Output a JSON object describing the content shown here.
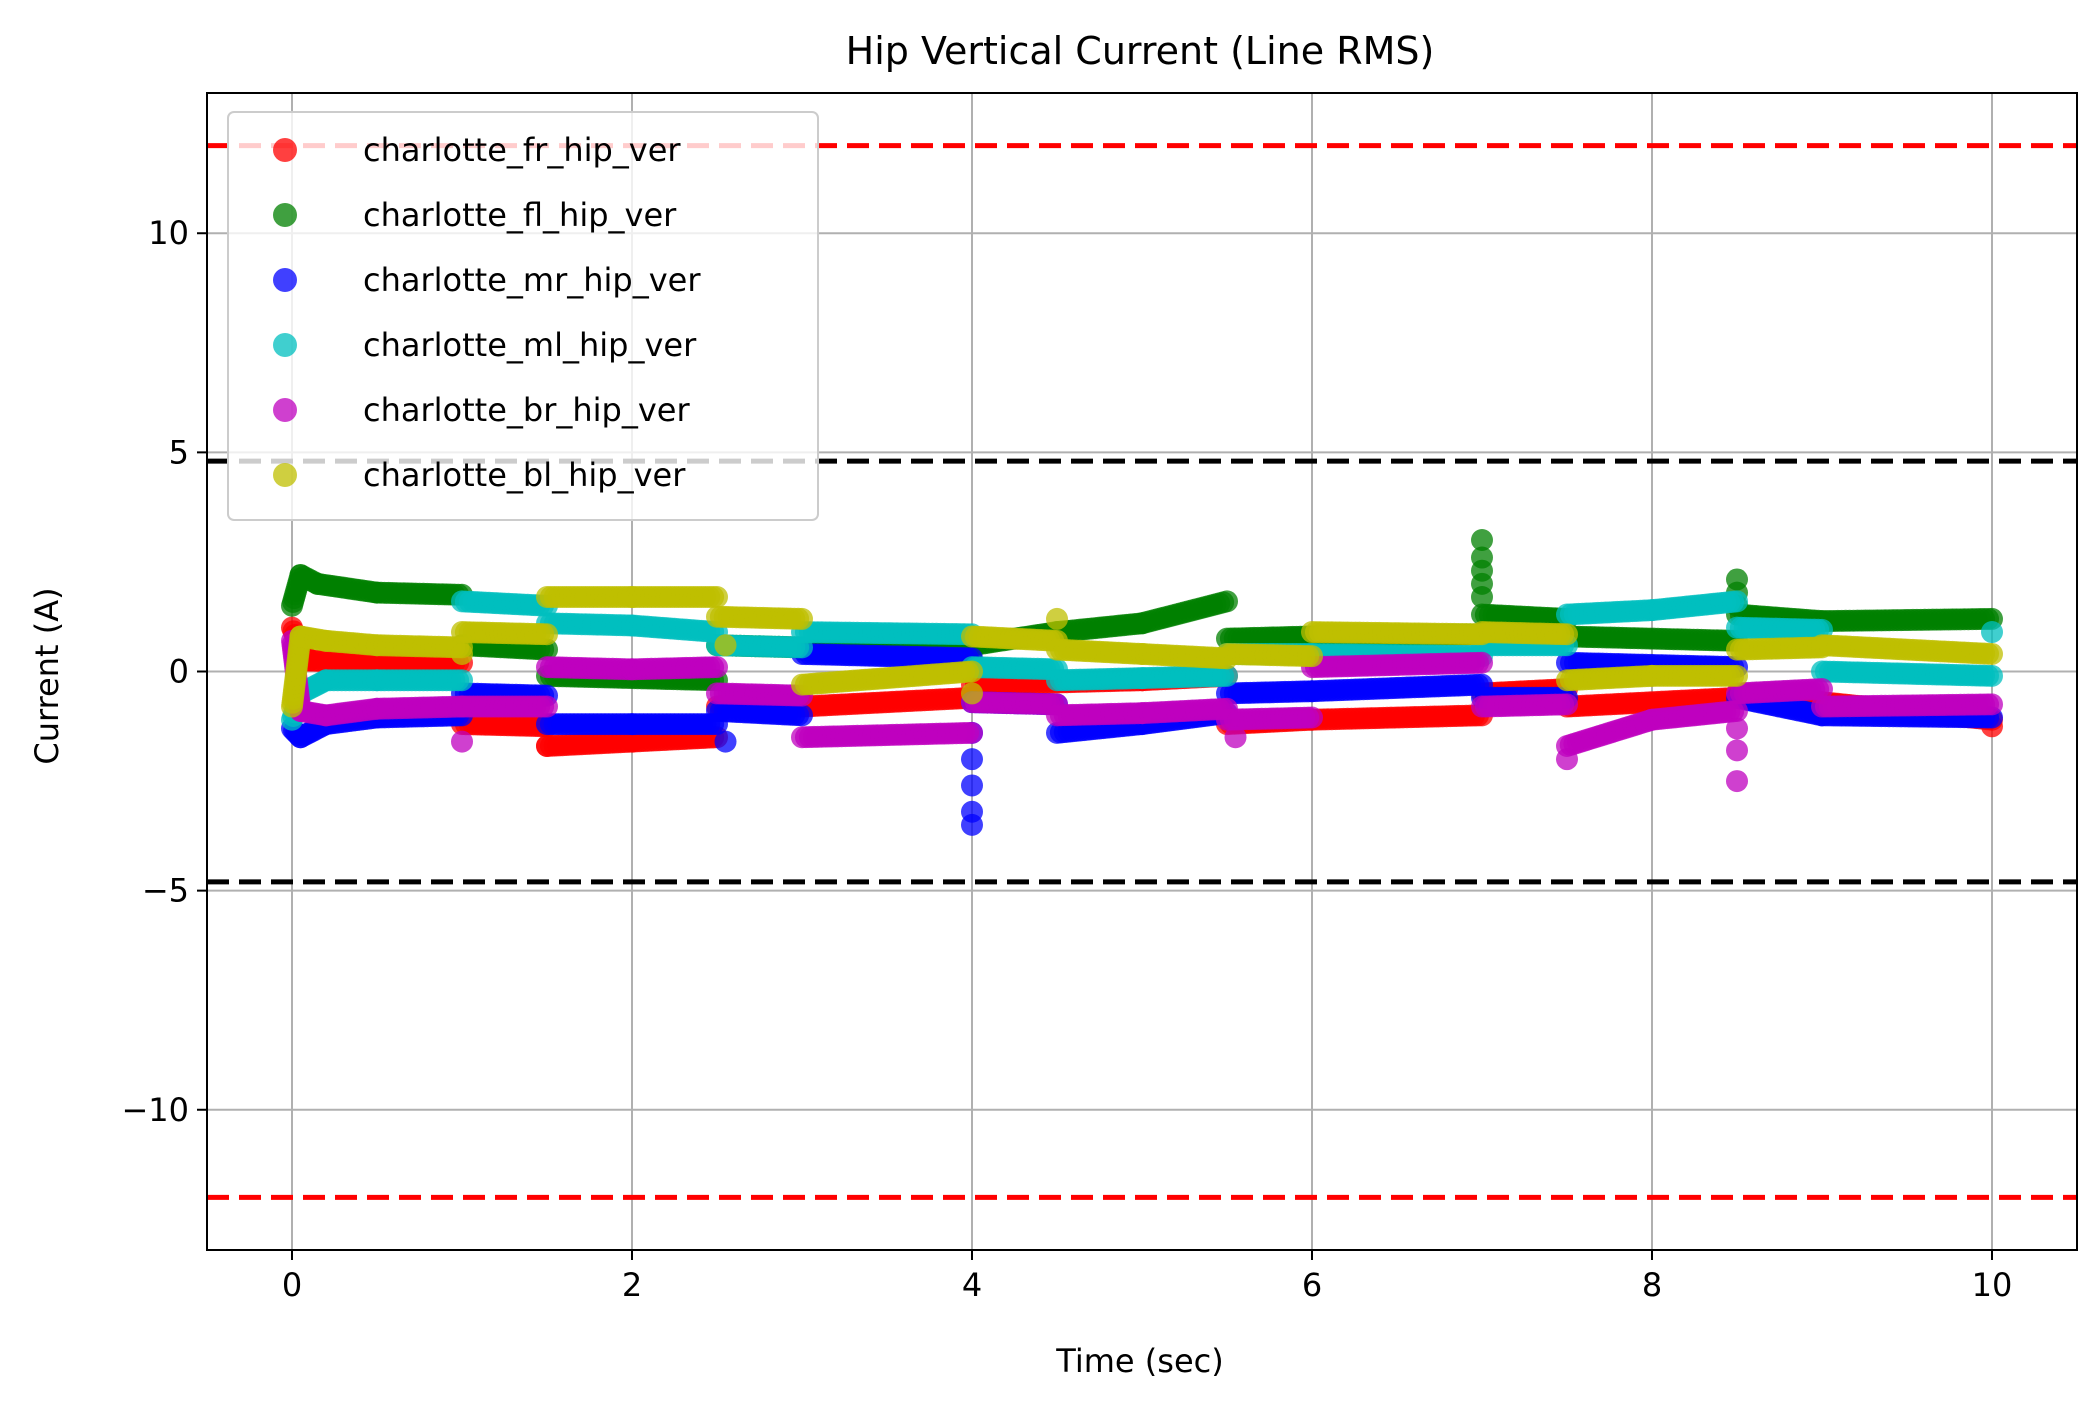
{
  "chart_data": {
    "type": "scatter",
    "title": "Hip Vertical Current (Line RMS)",
    "xlabel": "Time (sec)",
    "ylabel": "Current (A)",
    "xlim": [
      -0.5,
      10.5
    ],
    "ylim": [
      -13.2,
      13.2
    ],
    "x_ticks": [
      0,
      2,
      4,
      6,
      8,
      10
    ],
    "y_ticks": [
      -10,
      -5,
      0,
      5,
      10
    ],
    "x_tick_labels": [
      "0",
      "2",
      "4",
      "6",
      "8",
      "10"
    ],
    "y_tick_labels": [
      "−10",
      "−5",
      "0",
      "5",
      "10"
    ],
    "grid": true,
    "legend_position": "upper-left",
    "reference_lines": [
      {
        "y": 12,
        "color": "#ff0000",
        "style": "dashed"
      },
      {
        "y": -12,
        "color": "#ff0000",
        "style": "dashed"
      },
      {
        "y": 4.8,
        "color": "#000000",
        "style": "dashed"
      },
      {
        "y": -4.8,
        "color": "#000000",
        "style": "dashed"
      }
    ],
    "series": [
      {
        "name": "charlotte_fr_hip_ver",
        "color": "#ff0000",
        "segments": [
          [
            [
              0.0,
              1.0
            ],
            [
              0.05,
              0.5
            ],
            [
              0.1,
              0.25
            ],
            [
              0.5,
              0.2
            ],
            [
              1.0,
              0.2
            ]
          ],
          [
            [
              1.0,
              -1.2
            ],
            [
              1.5,
              -1.25
            ]
          ],
          [
            [
              1.5,
              -1.7
            ],
            [
              2.0,
              -1.6
            ],
            [
              2.5,
              -1.5
            ]
          ],
          [
            [
              2.5,
              -0.8
            ],
            [
              3.0,
              -0.7
            ]
          ],
          [
            [
              3.0,
              -0.8
            ],
            [
              4.0,
              -0.6
            ]
          ],
          [
            [
              4.0,
              -0.3
            ],
            [
              5.0,
              -0.2
            ],
            [
              5.5,
              -0.1
            ]
          ],
          [
            [
              5.5,
              -1.2
            ],
            [
              6.0,
              -1.1
            ],
            [
              7.0,
              -1.0
            ]
          ],
          [
            [
              7.0,
              -0.5
            ],
            [
              7.5,
              -0.4
            ]
          ],
          [
            [
              7.5,
              -0.8
            ],
            [
              8.5,
              -0.6
            ]
          ],
          [
            [
              8.5,
              -0.5
            ],
            [
              9.0,
              -0.7
            ],
            [
              10.0,
              -1.1
            ]
          ]
        ],
        "spikes": [
          [
            1.5,
            -1.7
          ],
          [
            10.0,
            -1.25
          ]
        ]
      },
      {
        "name": "charlotte_fl_hip_ver",
        "color": "#008000",
        "segments": [
          [
            [
              0.0,
              1.5
            ],
            [
              0.05,
              2.2
            ],
            [
              0.15,
              2.0
            ],
            [
              0.5,
              1.8
            ],
            [
              1.0,
              1.75
            ]
          ],
          [
            [
              1.0,
              0.6
            ],
            [
              1.5,
              0.5
            ]
          ],
          [
            [
              1.5,
              -0.1
            ],
            [
              2.5,
              -0.2
            ]
          ],
          [
            [
              2.5,
              0.6
            ],
            [
              3.0,
              0.55
            ]
          ],
          [
            [
              3.0,
              0.5
            ],
            [
              4.0,
              0.45
            ]
          ],
          [
            [
              4.0,
              0.6
            ],
            [
              4.5,
              0.9
            ],
            [
              5.0,
              1.1
            ],
            [
              5.5,
              1.6
            ]
          ],
          [
            [
              5.5,
              0.75
            ],
            [
              6.0,
              0.8
            ],
            [
              7.0,
              0.85
            ]
          ],
          [
            [
              7.0,
              1.3
            ],
            [
              7.5,
              1.2
            ]
          ],
          [
            [
              7.5,
              0.8
            ],
            [
              8.5,
              0.7
            ]
          ],
          [
            [
              8.5,
              1.3
            ],
            [
              9.0,
              1.15
            ],
            [
              10.0,
              1.2
            ]
          ]
        ],
        "spikes": [
          [
            7.0,
            3.0
          ],
          [
            7.0,
            2.6
          ],
          [
            7.0,
            2.3
          ],
          [
            7.0,
            2.0
          ],
          [
            7.0,
            1.7
          ],
          [
            8.5,
            2.1
          ],
          [
            8.5,
            1.8
          ],
          [
            8.5,
            1.5
          ]
        ]
      },
      {
        "name": "charlotte_mr_hip_ver",
        "color": "#0000ff",
        "segments": [
          [
            [
              0.0,
              -1.3
            ],
            [
              0.05,
              -1.5
            ],
            [
              0.2,
              -1.2
            ],
            [
              0.5,
              -1.05
            ],
            [
              1.0,
              -1.0
            ]
          ],
          [
            [
              1.0,
              -0.5
            ],
            [
              1.5,
              -0.55
            ]
          ],
          [
            [
              1.5,
              -1.2
            ],
            [
              2.0,
              -1.2
            ],
            [
              2.5,
              -1.2
            ]
          ],
          [
            [
              2.5,
              -0.9
            ],
            [
              3.0,
              -1.0
            ]
          ],
          [
            [
              3.0,
              0.4
            ],
            [
              4.0,
              0.3
            ]
          ],
          [
            [
              4.0,
              -0.7
            ],
            [
              4.5,
              -0.75
            ]
          ],
          [
            [
              4.5,
              -1.4
            ],
            [
              5.0,
              -1.2
            ],
            [
              5.5,
              -0.95
            ]
          ],
          [
            [
              5.5,
              -0.5
            ],
            [
              6.0,
              -0.45
            ],
            [
              7.0,
              -0.3
            ]
          ],
          [
            [
              7.0,
              -0.6
            ],
            [
              7.5,
              -0.6
            ]
          ],
          [
            [
              7.5,
              0.2
            ],
            [
              8.5,
              0.1
            ]
          ],
          [
            [
              8.5,
              -0.6
            ],
            [
              9.0,
              -1.0
            ],
            [
              10.0,
              -1.05
            ]
          ]
        ],
        "spikes": [
          [
            4.0,
            -3.5
          ],
          [
            4.0,
            -3.2
          ],
          [
            4.0,
            -2.6
          ],
          [
            4.0,
            -2.0
          ],
          [
            4.0,
            -1.4
          ],
          [
            2.55,
            -1.6
          ]
        ]
      },
      {
        "name": "charlotte_ml_hip_ver",
        "color": "#00bfbf",
        "segments": [
          [
            [
              0.0,
              -1.1
            ],
            [
              0.05,
              -0.5
            ],
            [
              0.2,
              -0.2
            ],
            [
              0.5,
              -0.2
            ],
            [
              1.0,
              -0.2
            ]
          ],
          [
            [
              1.0,
              1.6
            ],
            [
              1.5,
              1.5
            ]
          ],
          [
            [
              1.5,
              1.1
            ],
            [
              2.0,
              1.05
            ],
            [
              2.5,
              0.9
            ]
          ],
          [
            [
              2.5,
              0.6
            ],
            [
              3.0,
              0.55
            ]
          ],
          [
            [
              3.0,
              0.9
            ],
            [
              4.0,
              0.85
            ]
          ],
          [
            [
              4.0,
              0.1
            ],
            [
              4.5,
              0.05
            ]
          ],
          [
            [
              4.5,
              -0.2
            ],
            [
              5.0,
              -0.15
            ],
            [
              5.5,
              -0.1
            ]
          ],
          [
            [
              5.5,
              0.4
            ],
            [
              6.0,
              0.4
            ],
            [
              7.0,
              0.35
            ]
          ],
          [
            [
              7.0,
              0.6
            ],
            [
              7.5,
              0.6
            ]
          ],
          [
            [
              7.5,
              1.3
            ],
            [
              8.0,
              1.4
            ],
            [
              8.5,
              1.6
            ]
          ],
          [
            [
              8.5,
              1.0
            ],
            [
              9.0,
              0.95
            ]
          ],
          [
            [
              9.0,
              0.0
            ],
            [
              10.0,
              -0.1
            ]
          ]
        ],
        "spikes": [
          [
            10.0,
            0.9
          ]
        ]
      },
      {
        "name": "charlotte_br_hip_ver",
        "color": "#bf00bf",
        "segments": [
          [
            [
              0.0,
              0.7
            ],
            [
              0.05,
              -0.9
            ],
            [
              0.2,
              -1.0
            ],
            [
              0.5,
              -0.85
            ],
            [
              1.0,
              -0.8
            ]
          ],
          [
            [
              1.0,
              -0.8
            ],
            [
              1.5,
              -0.8
            ]
          ],
          [
            [
              1.5,
              0.1
            ],
            [
              2.0,
              0.05
            ],
            [
              2.5,
              0.1
            ]
          ],
          [
            [
              2.5,
              -0.5
            ],
            [
              3.0,
              -0.55
            ]
          ],
          [
            [
              3.0,
              -1.5
            ],
            [
              4.0,
              -1.4
            ]
          ],
          [
            [
              4.0,
              -0.7
            ],
            [
              4.5,
              -0.75
            ]
          ],
          [
            [
              4.5,
              -1.0
            ],
            [
              5.0,
              -0.95
            ],
            [
              5.5,
              -0.85
            ]
          ],
          [
            [
              5.5,
              -1.1
            ],
            [
              6.0,
              -1.05
            ]
          ],
          [
            [
              6.0,
              0.1
            ],
            [
              7.0,
              0.2
            ]
          ],
          [
            [
              7.0,
              -0.8
            ],
            [
              7.5,
              -0.75
            ]
          ],
          [
            [
              7.5,
              -1.7
            ],
            [
              8.0,
              -1.1
            ],
            [
              8.5,
              -0.9
            ]
          ],
          [
            [
              8.5,
              -0.5
            ],
            [
              9.0,
              -0.4
            ]
          ],
          [
            [
              9.0,
              -0.8
            ],
            [
              10.0,
              -0.75
            ]
          ]
        ],
        "spikes": [
          [
            8.5,
            -2.5
          ],
          [
            8.5,
            -1.8
          ],
          [
            8.5,
            -1.3
          ],
          [
            7.5,
            -2.0
          ],
          [
            1.0,
            -1.6
          ],
          [
            5.55,
            -1.5
          ]
        ]
      },
      {
        "name": "charlotte_bl_hip_ver",
        "color": "#bfbf00",
        "segments": [
          [
            [
              0.0,
              -0.8
            ],
            [
              0.05,
              0.8
            ],
            [
              0.2,
              0.7
            ],
            [
              0.5,
              0.6
            ],
            [
              1.0,
              0.55
            ]
          ],
          [
            [
              1.0,
              0.9
            ],
            [
              1.5,
              0.85
            ]
          ],
          [
            [
              1.5,
              1.7
            ],
            [
              2.0,
              1.7
            ],
            [
              2.5,
              1.7
            ]
          ],
          [
            [
              2.5,
              1.25
            ],
            [
              3.0,
              1.2
            ]
          ],
          [
            [
              3.0,
              -0.3
            ],
            [
              4.0,
              0.0
            ]
          ],
          [
            [
              4.0,
              0.8
            ],
            [
              4.5,
              0.7
            ]
          ],
          [
            [
              4.5,
              0.5
            ],
            [
              5.0,
              0.4
            ],
            [
              5.5,
              0.3
            ]
          ],
          [
            [
              5.5,
              0.4
            ],
            [
              6.0,
              0.35
            ]
          ],
          [
            [
              6.0,
              0.9
            ],
            [
              7.0,
              0.85
            ]
          ],
          [
            [
              7.0,
              0.9
            ],
            [
              7.5,
              0.85
            ]
          ],
          [
            [
              7.5,
              -0.2
            ],
            [
              8.0,
              -0.1
            ],
            [
              8.5,
              -0.1
            ]
          ],
          [
            [
              8.5,
              0.5
            ],
            [
              9.0,
              0.55
            ]
          ],
          [
            [
              9.0,
              0.6
            ],
            [
              10.0,
              0.4
            ]
          ]
        ],
        "spikes": [
          [
            4.0,
            -0.5
          ],
          [
            4.5,
            1.2
          ],
          [
            1.0,
            0.4
          ],
          [
            2.55,
            0.6
          ]
        ]
      }
    ]
  }
}
